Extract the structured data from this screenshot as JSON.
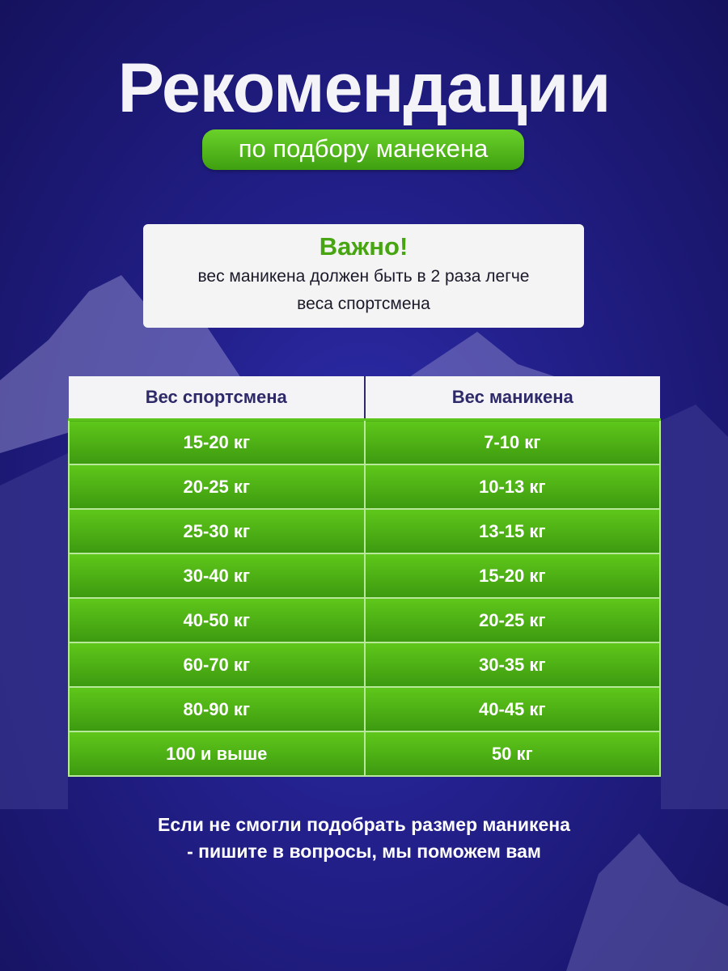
{
  "header": {
    "title": "Рекомендации",
    "subtitle": "по подбору манекена"
  },
  "note": {
    "heading": "Важно!",
    "line1": "вес маникена должен быть в 2 раза легче",
    "line2": "веса спортсмена"
  },
  "table": {
    "columns": [
      "Вес спортсмена",
      "Вес маникена"
    ],
    "rows": [
      [
        "15-20 кг",
        "7-10 кг"
      ],
      [
        "20-25 кг",
        "10-13 кг"
      ],
      [
        "25-30 кг",
        "13-15 кг"
      ],
      [
        "30-40 кг",
        "15-20 кг"
      ],
      [
        "40-50 кг",
        "20-25 кг"
      ],
      [
        "60-70 кг",
        "30-35 кг"
      ],
      [
        "80-90 кг",
        "40-45 кг"
      ],
      [
        "100 и выше",
        "50 кг"
      ]
    ]
  },
  "footer": {
    "line1": "Если не смогли подобрать размер маникена",
    "line2": "- пишите в вопросы, мы поможем вам"
  },
  "colors": {
    "background": "#23208c",
    "accent_green": "#5cc41a",
    "header_text": "#2e2a6a"
  }
}
